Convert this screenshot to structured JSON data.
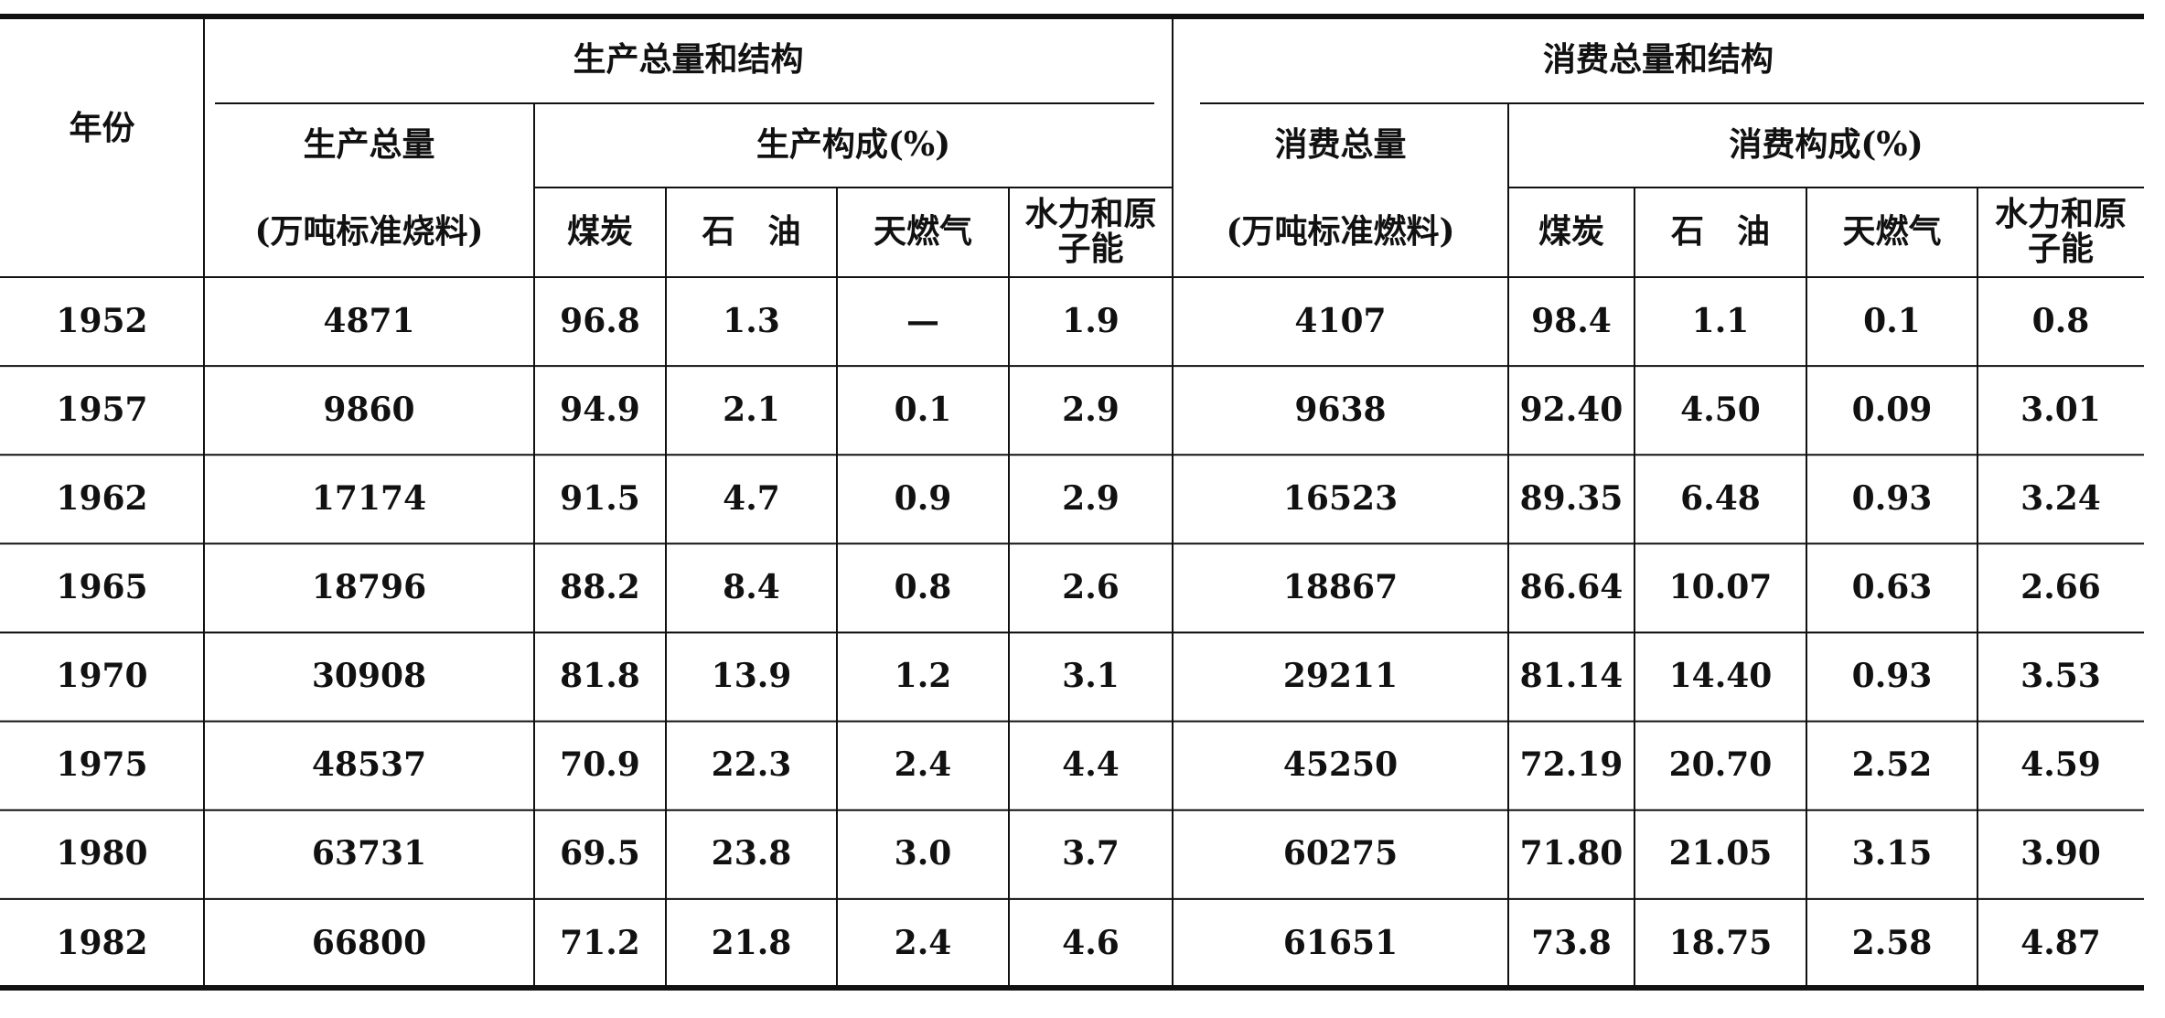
{
  "table": {
    "header": {
      "year": "年份",
      "production": "生产总量和结构",
      "consumption": "消费总量和结构",
      "production_total": "生产总量",
      "production_total_unit": "(万吨标准烧料)",
      "production_mix": "生产构成(%)",
      "consumption_total": "消费总量",
      "consumption_total_unit": "(万吨标准燃料)",
      "consumption_mix": "消费构成(%)",
      "columns": [
        "煤炭",
        "石　油",
        "天燃气",
        "水力和原子能",
        "煤炭",
        "石　油",
        "天燃气",
        "水力和原子能"
      ]
    },
    "rows": [
      [
        "1952",
        "4871",
        "96.8",
        "1.3",
        "—",
        "1.9",
        "4107",
        "98.4",
        "1.1",
        "0.1",
        "0.8"
      ],
      [
        "1957",
        "9860",
        "94.9",
        "2.1",
        "0.1",
        "2.9",
        "9638",
        "92.40",
        "4.50",
        "0.09",
        "3.01"
      ],
      [
        "1962",
        "17174",
        "91.5",
        "4.7",
        "0.9",
        "2.9",
        "16523",
        "89.35",
        "6.48",
        "0.93",
        "3.24"
      ],
      [
        "1965",
        "18796",
        "88.2",
        "8.4",
        "0.8",
        "2.6",
        "18867",
        "86.64",
        "10.07",
        "0.63",
        "2.66"
      ],
      [
        "1970",
        "30908",
        "81.8",
        "13.9",
        "1.2",
        "3.1",
        "29211",
        "81.14",
        "14.40",
        "0.93",
        "3.53"
      ],
      [
        "1975",
        "48537",
        "70.9",
        "22.3",
        "2.4",
        "4.4",
        "45250",
        "72.19",
        "20.70",
        "2.52",
        "4.59"
      ],
      [
        "1980",
        "63731",
        "69.5",
        "23.8",
        "3.0",
        "3.7",
        "60275",
        "71.80",
        "21.05",
        "3.15",
        "3.90"
      ],
      [
        "1982",
        "66800",
        "71.2",
        "21.8",
        "2.4",
        "4.6",
        "61651",
        "73.8",
        "18.75",
        "2.58",
        "4.87"
      ]
    ]
  }
}
